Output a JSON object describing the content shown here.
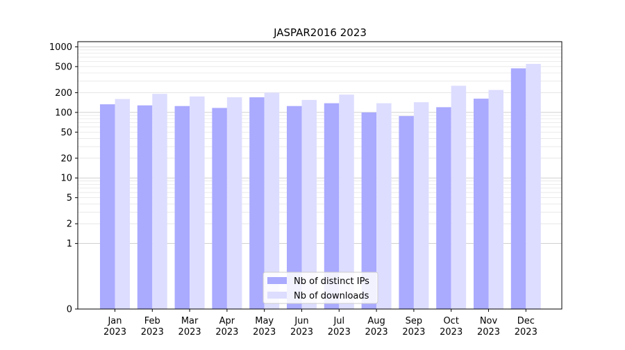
{
  "chart_data": {
    "type": "bar",
    "title": "JASPAR2016 2023",
    "xlabel": "",
    "ylabel": "",
    "yscale": "symlog",
    "ylim": [
      0,
      1200
    ],
    "grid": true,
    "legend_position": "lower-center",
    "categories": [
      [
        "Jan",
        "2023"
      ],
      [
        "Feb",
        "2023"
      ],
      [
        "Mar",
        "2023"
      ],
      [
        "Apr",
        "2023"
      ],
      [
        "May",
        "2023"
      ],
      [
        "Jun",
        "2023"
      ],
      [
        "Jul",
        "2023"
      ],
      [
        "Aug",
        "2023"
      ],
      [
        "Sep",
        "2023"
      ],
      [
        "Oct",
        "2023"
      ],
      [
        "Nov",
        "2023"
      ],
      [
        "Dec",
        "2023"
      ]
    ],
    "yticks": [
      {
        "value": 0,
        "label": "0"
      },
      {
        "value": 1,
        "label": "1"
      },
      {
        "value": 2,
        "label": "2"
      },
      {
        "value": 5,
        "label": "5"
      },
      {
        "value": 10,
        "label": "10"
      },
      {
        "value": 20,
        "label": "20"
      },
      {
        "value": 50,
        "label": "50"
      },
      {
        "value": 100,
        "label": "100"
      },
      {
        "value": 200,
        "label": "200"
      },
      {
        "value": 500,
        "label": "500"
      },
      {
        "value": 1000,
        "label": "1000"
      }
    ],
    "series": [
      {
        "name": "Nb of distinct IPs",
        "color": "#aaaaff",
        "values": [
          133,
          128,
          125,
          117,
          170,
          125,
          138,
          100,
          88,
          120,
          162,
          470
        ]
      },
      {
        "name": "Nb of downloads",
        "color": "#ddddff",
        "values": [
          160,
          192,
          175,
          170,
          200,
          155,
          187,
          138,
          143,
          255,
          220,
          550
        ]
      }
    ]
  }
}
